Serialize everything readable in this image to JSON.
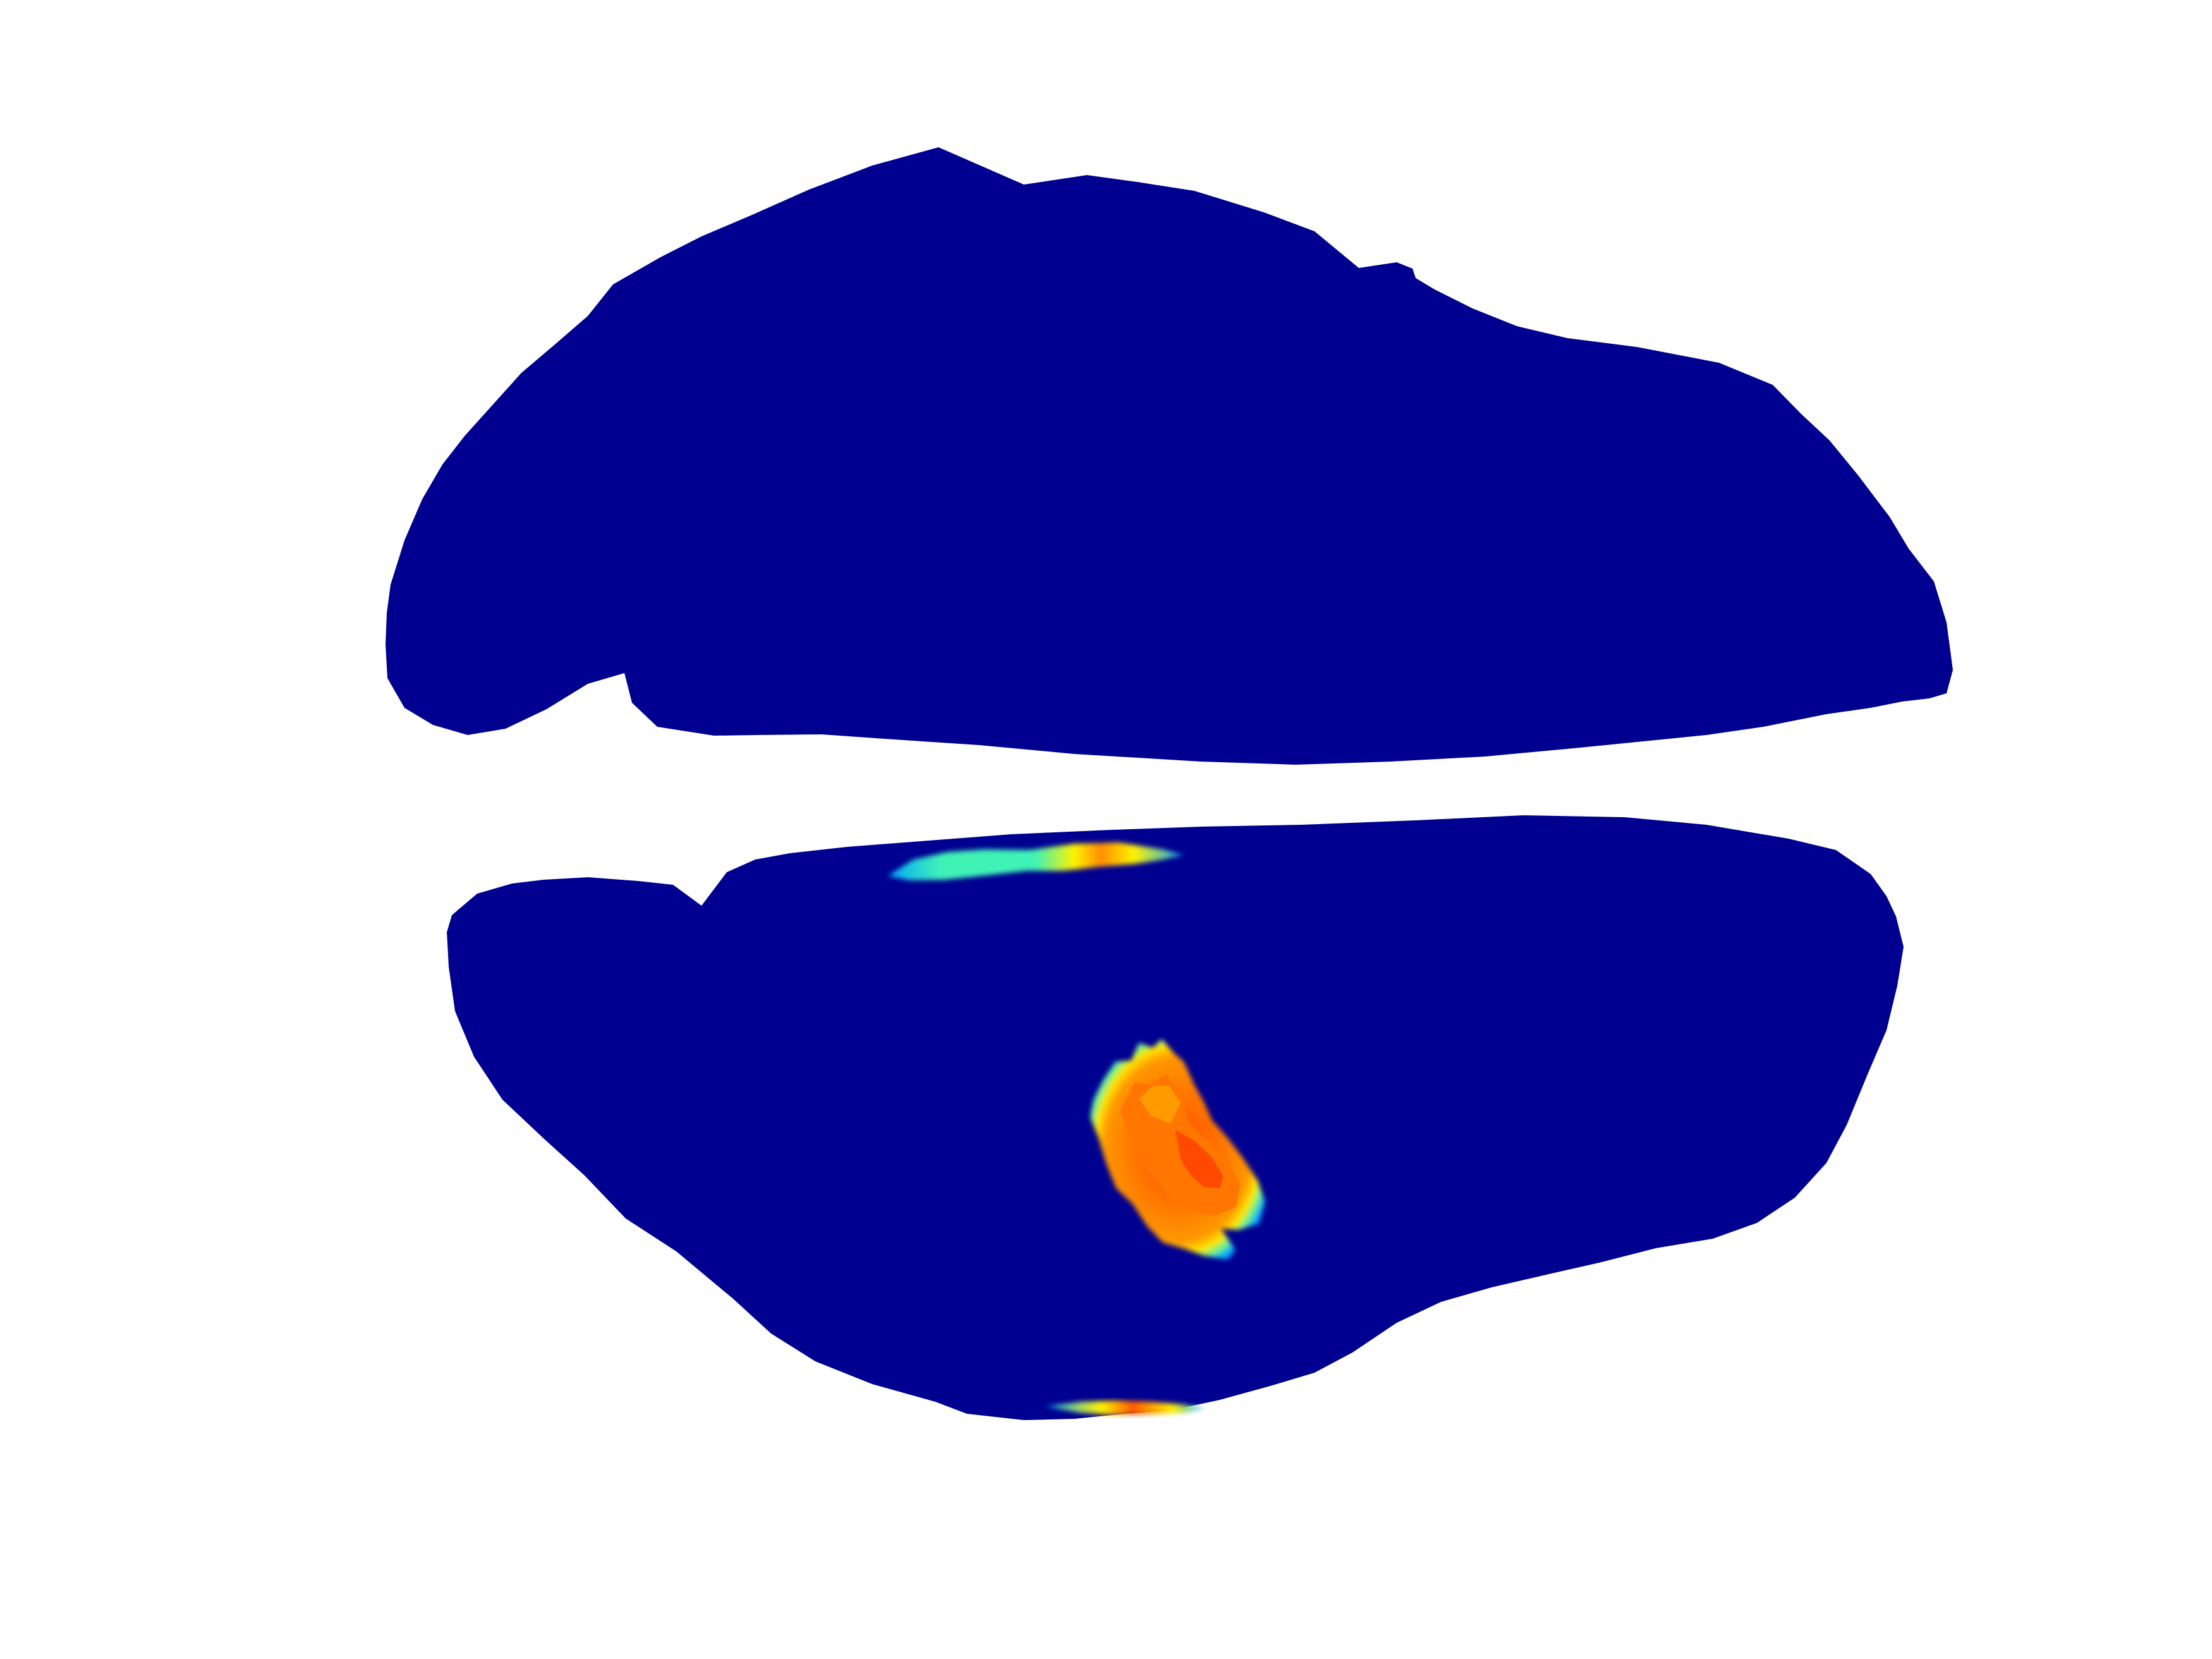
{
  "figure": {
    "background_color": "#ffffff",
    "views": [
      {
        "id": "lateral-view",
        "surface_color": "#000090",
        "hotspots": []
      },
      {
        "id": "medial-view",
        "surface_color": "#000090",
        "hotspots": [
          {
            "id": "hotspot-upper-margin",
            "colors": [
              "#00a8ff",
              "#41f2b6",
              "#fff200",
              "#ff8c00",
              "#ff4a00"
            ]
          },
          {
            "id": "hotspot-central",
            "colors": [
              "#00a8ff",
              "#6df38f",
              "#ffe600",
              "#ff8c00",
              "#ff3b00"
            ]
          },
          {
            "id": "hotspot-bottom-edge",
            "colors": [
              "#00a8ff",
              "#fff200",
              "#ff5a00"
            ]
          }
        ]
      }
    ]
  }
}
